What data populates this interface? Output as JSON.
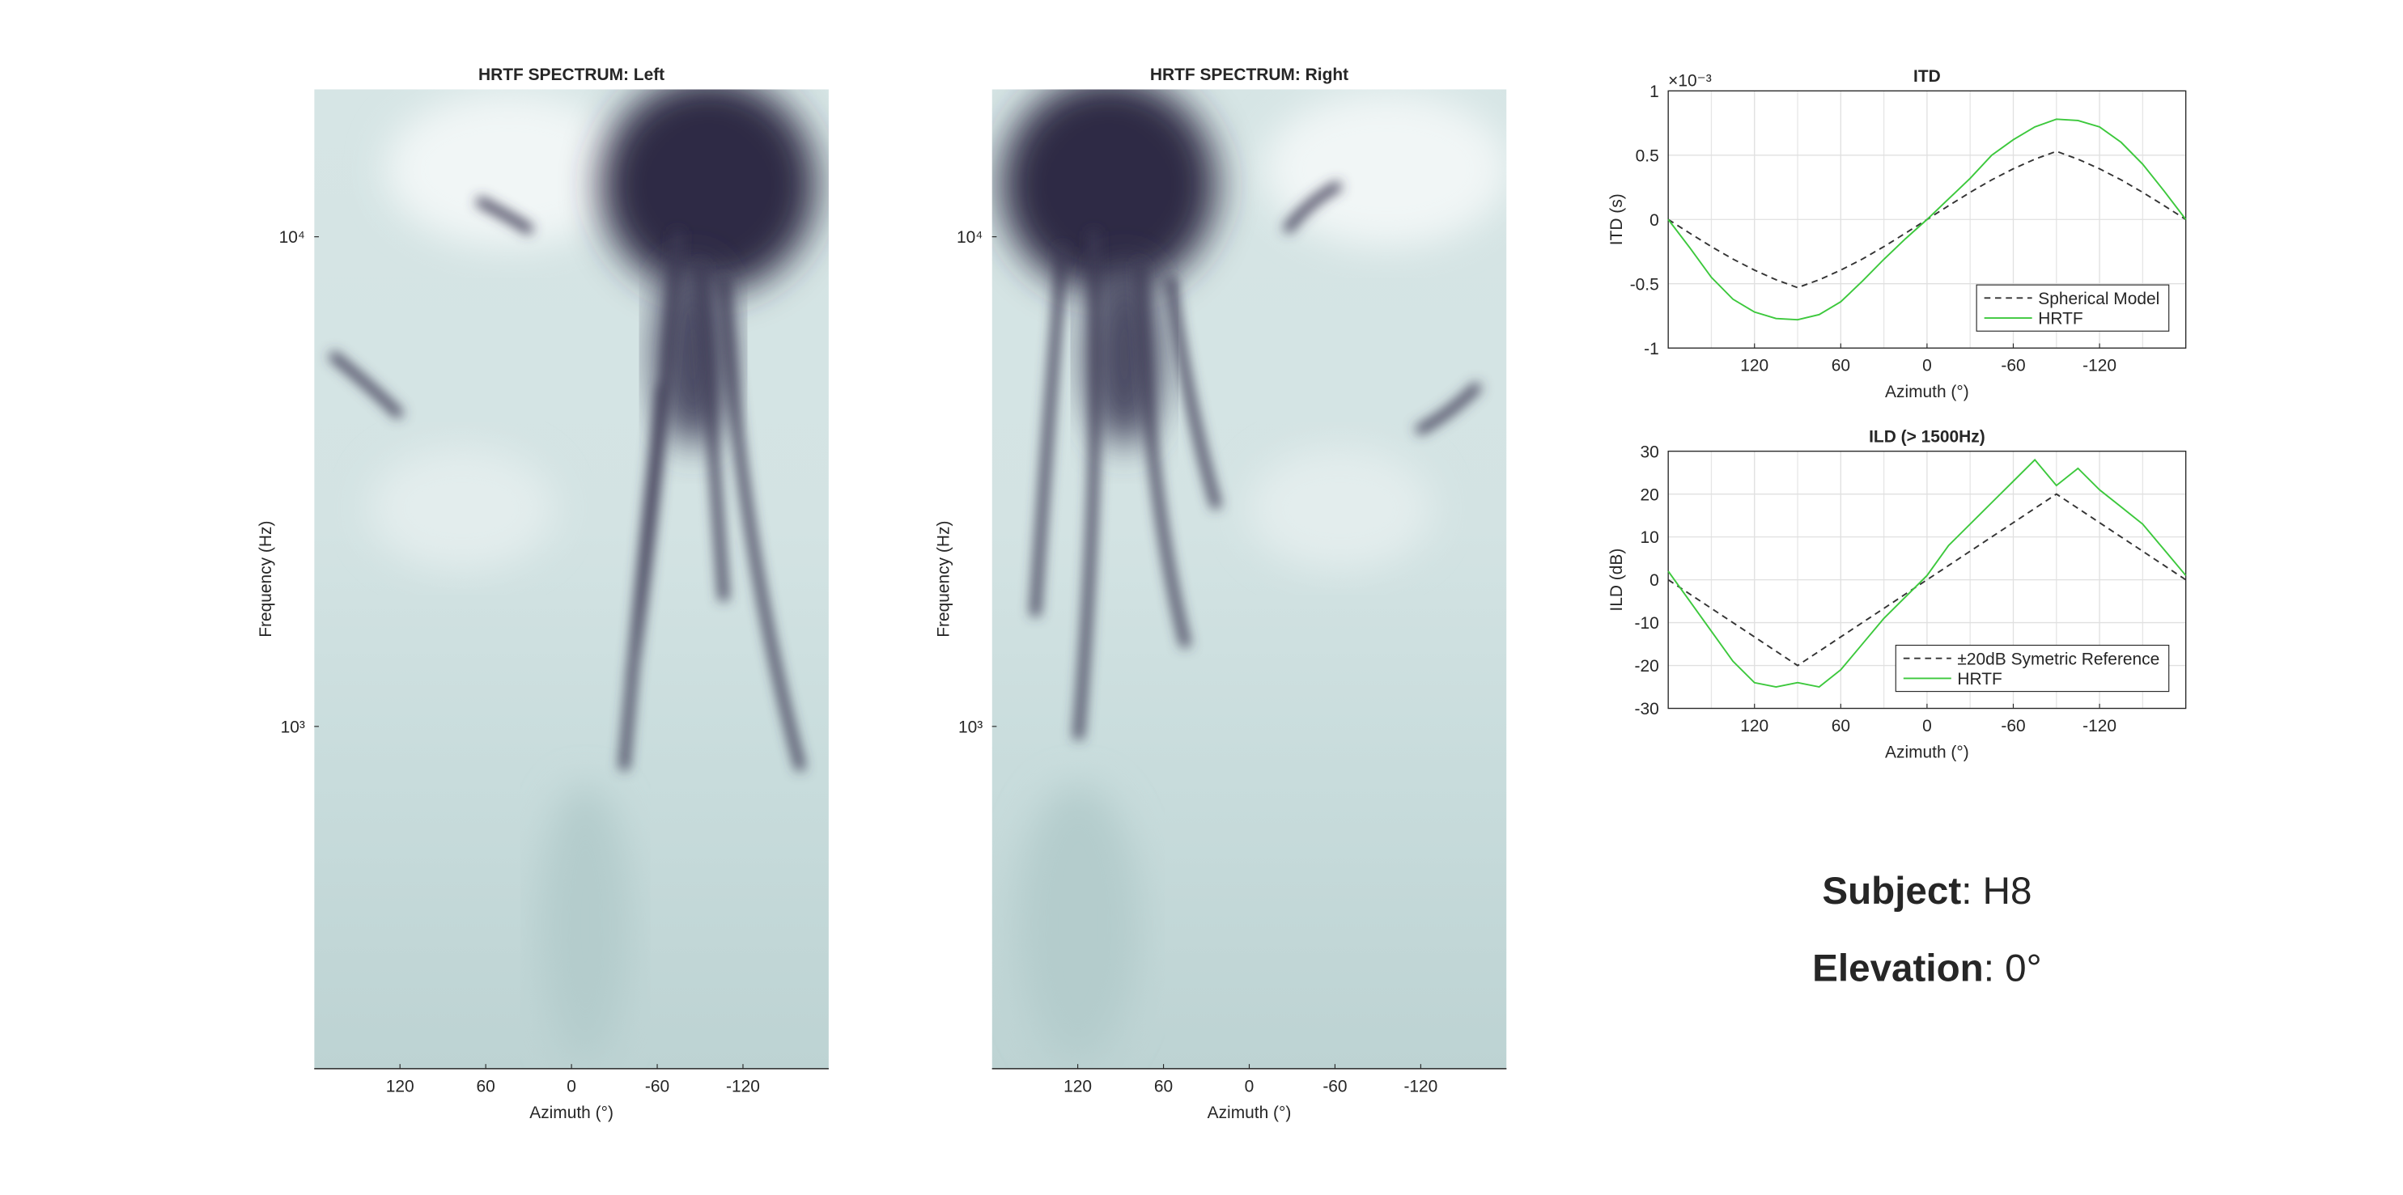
{
  "chart_data": [
    {
      "type": "heatmap",
      "title": "HRTF SPECTRUM: Left",
      "xlabel": "Azimuth (°)",
      "ylabel": "Frequency (Hz)",
      "xlim": [
        180,
        -180
      ],
      "xticks": [
        120,
        60,
        0,
        -60,
        -120
      ],
      "yscale": "log",
      "ylim": [
        200,
        20000
      ],
      "yticks": [
        {
          "value": 1000,
          "label": "10³"
        },
        {
          "value": 10000,
          "label": "10⁴"
        }
      ]
    },
    {
      "type": "heatmap",
      "title": "HRTF SPECTRUM: Right",
      "xlabel": "Azimuth (°)",
      "ylabel": "Frequency (Hz)",
      "xlim": [
        180,
        -180
      ],
      "xticks": [
        120,
        60,
        0,
        -60,
        -120
      ],
      "yscale": "log",
      "ylim": [
        200,
        20000
      ],
      "yticks": [
        {
          "value": 1000,
          "label": "10³"
        },
        {
          "value": 10000,
          "label": "10⁴"
        }
      ]
    },
    {
      "type": "line",
      "title": "ITD",
      "xlabel": "Azimuth (°)",
      "ylabel": "ITD (s)",
      "yexponent": "×10⁻³",
      "xlim": [
        180,
        -180
      ],
      "xticks": [
        120,
        60,
        0,
        -60,
        -120
      ],
      "xminor": [
        150,
        90,
        30,
        -30,
        -90,
        -150
      ],
      "ylim": [
        -1,
        1
      ],
      "yticks": [
        -1,
        -0.5,
        0,
        0.5,
        1
      ],
      "grid": true,
      "legend": "lower right",
      "x": [
        180,
        165,
        150,
        135,
        120,
        105,
        90,
        75,
        60,
        45,
        30,
        15,
        0,
        -15,
        -30,
        -45,
        -60,
        -75,
        -90,
        -105,
        -120,
        -135,
        -150,
        -165,
        -180
      ],
      "series": [
        {
          "name": "Spherical Model",
          "color": "#333333",
          "dash": true,
          "values": [
            0,
            -0.107,
            -0.211,
            -0.308,
            -0.394,
            -0.469,
            -0.53,
            -0.469,
            -0.394,
            -0.308,
            -0.211,
            -0.107,
            0,
            0.107,
            0.211,
            0.308,
            0.394,
            0.469,
            0.53,
            0.469,
            0.394,
            0.308,
            0.211,
            0.107,
            0
          ]
        },
        {
          "name": "HRTF",
          "color": "#3cc83c",
          "dash": false,
          "values": [
            0,
            -0.22,
            -0.45,
            -0.62,
            -0.72,
            -0.77,
            -0.78,
            -0.74,
            -0.64,
            -0.48,
            -0.31,
            -0.15,
            0,
            0.16,
            0.32,
            0.5,
            0.62,
            0.72,
            0.78,
            0.77,
            0.72,
            0.6,
            0.43,
            0.22,
            0
          ]
        }
      ]
    },
    {
      "type": "line",
      "title": "ILD (> 1500Hz)",
      "xlabel": "Azimuth (°)",
      "ylabel": "ILD (dB)",
      "xlim": [
        180,
        -180
      ],
      "xticks": [
        120,
        60,
        0,
        -60,
        -120
      ],
      "xminor": [
        150,
        90,
        30,
        -30,
        -90,
        -150
      ],
      "ylim": [
        -30,
        30
      ],
      "yticks": [
        -30,
        -20,
        -10,
        0,
        10,
        20,
        30
      ],
      "grid": true,
      "legend": "lower right",
      "x": [
        180,
        165,
        150,
        135,
        120,
        105,
        90,
        75,
        60,
        45,
        30,
        15,
        0,
        -15,
        -30,
        -45,
        -60,
        -75,
        -90,
        -105,
        -120,
        -135,
        -150,
        -165,
        -180
      ],
      "series": [
        {
          "name": "±20dB Symetric Reference",
          "color": "#333333",
          "dash": true,
          "values": [
            0,
            -3.33,
            -6.67,
            -10,
            -13.33,
            -16.67,
            -20,
            -16.67,
            -13.33,
            -10,
            -6.67,
            -3.33,
            0,
            3.33,
            6.67,
            10,
            13.33,
            16.67,
            20,
            16.67,
            13.33,
            10,
            6.67,
            3.33,
            0
          ]
        },
        {
          "name": "HRTF",
          "color": "#3cc83c",
          "dash": false,
          "values": [
            2,
            -5,
            -12,
            -19,
            -24,
            -25,
            -24,
            -25,
            -21,
            -15,
            -9,
            -4,
            1,
            8,
            13,
            18,
            23,
            28,
            22,
            26,
            21,
            17,
            13,
            7,
            1
          ]
        }
      ]
    }
  ],
  "info": [
    {
      "label": "Subject",
      "text": ": H8"
    },
    {
      "label": "Elevation",
      "text": ": 0°"
    }
  ]
}
